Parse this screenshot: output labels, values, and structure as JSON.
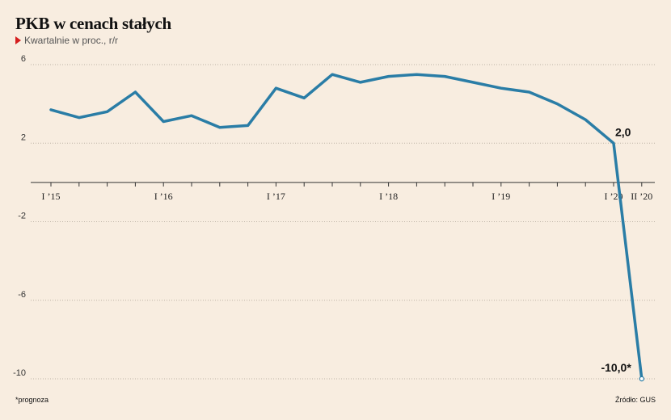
{
  "header": {
    "title": "PKB w cenach stałych",
    "subtitle": "Kwartalnie w proc., r/r"
  },
  "footer": {
    "note": "*prognoza",
    "source": "Źródło: GUS"
  },
  "colors": {
    "line": "#2a7da6",
    "background": "#f8ede0",
    "marker_accent": "#d51e1e"
  },
  "chart_data": {
    "type": "line",
    "title": "PKB w cenach stałych",
    "subtitle": "Kwartalnie w proc., r/r",
    "ylim": [
      -10,
      6
    ],
    "y_ticks": [
      6,
      2,
      -2,
      -6,
      -10
    ],
    "y_tick_labels": [
      "6",
      "2",
      "-2",
      "-6",
      "-10"
    ],
    "grid": "horizontal dotted",
    "x_tick_labels": [
      {
        "index": 0,
        "label": "I ’15"
      },
      {
        "index": 4,
        "label": "I ’16"
      },
      {
        "index": 8,
        "label": "I ’17"
      },
      {
        "index": 12,
        "label": "I ’18"
      },
      {
        "index": 16,
        "label": "I ’19"
      },
      {
        "index": 20,
        "label": "I ’20"
      },
      {
        "index": 21,
        "label": "II ’20"
      }
    ],
    "series": [
      {
        "values": [
          3.7,
          3.3,
          3.6,
          4.6,
          3.1,
          3.4,
          2.8,
          2.9,
          4.8,
          4.3,
          5.5,
          5.1,
          5.4,
          5.5,
          5.4,
          5.1,
          4.8,
          4.6,
          4.0,
          3.2,
          2.0,
          -10.0
        ]
      }
    ],
    "annotations": [
      {
        "index": 20,
        "text": "2,0"
      },
      {
        "index": 21,
        "text": "-10,0*"
      }
    ]
  }
}
